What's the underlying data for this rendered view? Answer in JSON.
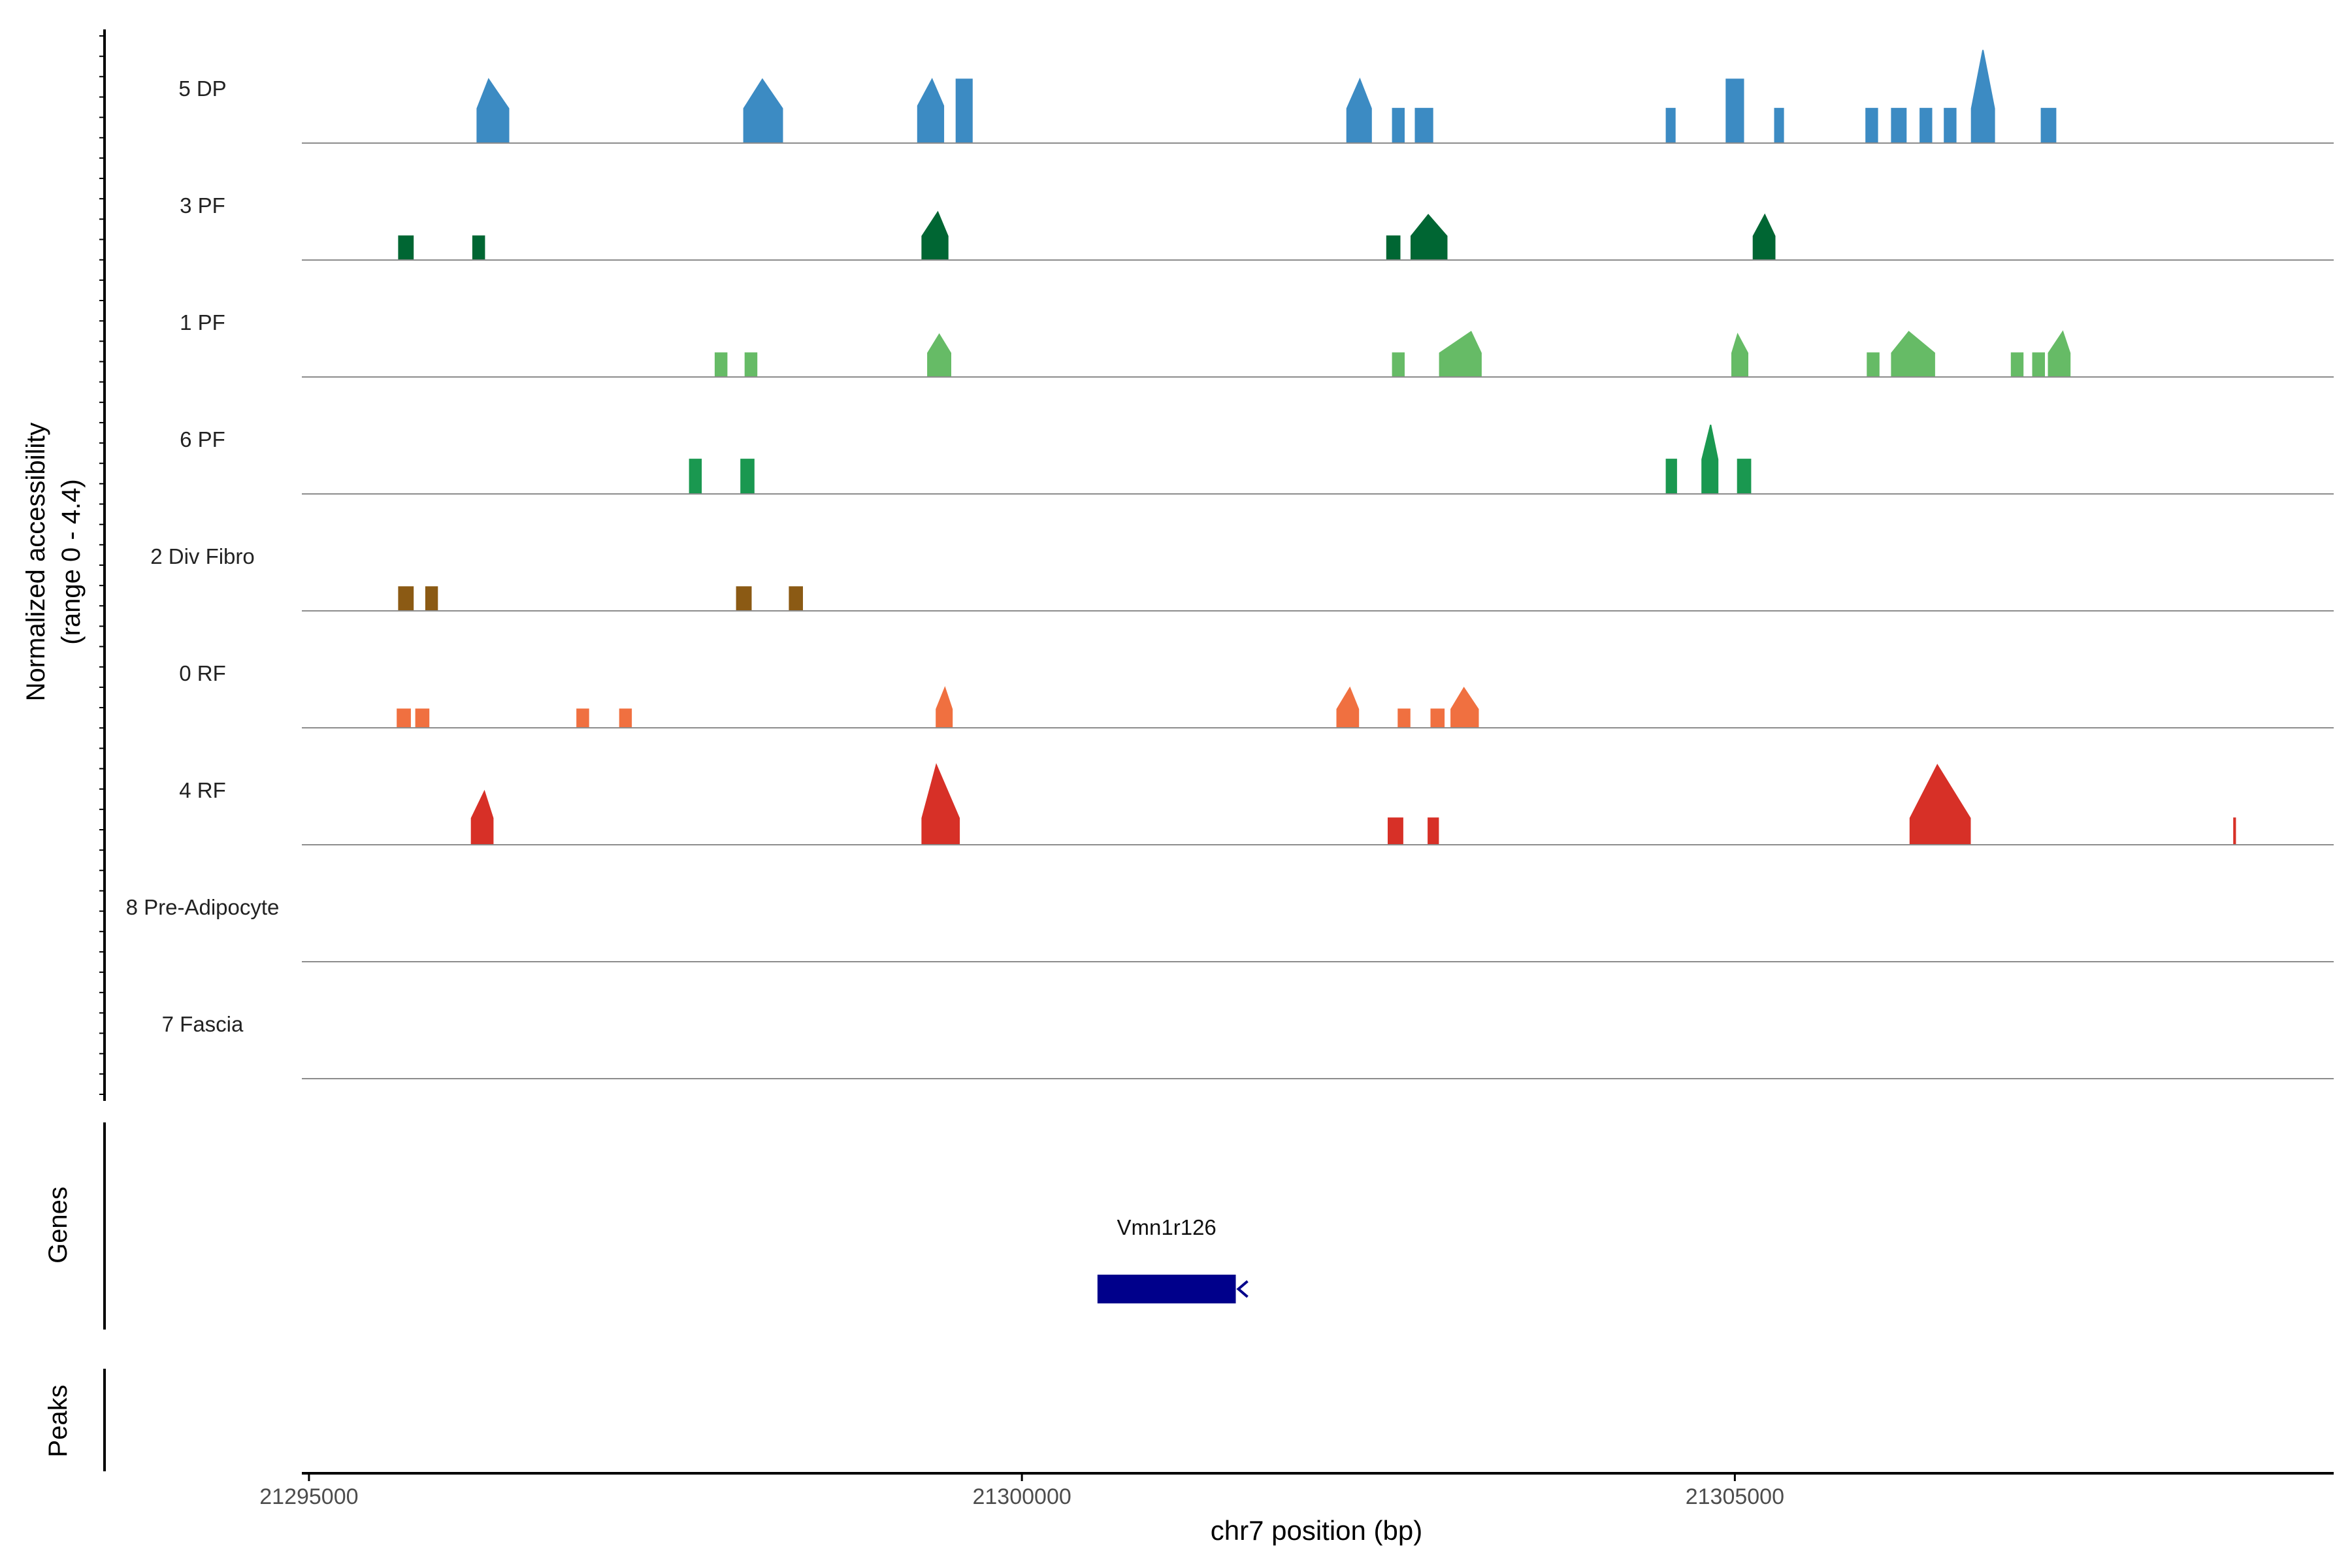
{
  "chart_data": {
    "type": "area",
    "title": "",
    "xlabel": "chr7 position (bp)",
    "ylabel_line1": "Normalized accessibility",
    "ylabel_line2": "(range 0 - 4.4)",
    "genes_label": "Genes",
    "peaks_label": "Peaks",
    "xlim": [
      21294950,
      21309200
    ],
    "ylim": [
      0,
      4.4
    ],
    "xticks": [
      21295000,
      21300000,
      21305000
    ],
    "xtick_labels": [
      "21295000",
      "21300000",
      "21305000"
    ],
    "tracks": [
      {
        "name": "5 DP",
        "color": "#3c8bc3",
        "peaks": [
          {
            "x": [
              21296180,
              21296260,
              21296400
            ],
            "y": [
              1.3,
              2.4,
              1.3
            ]
          },
          {
            "x": [
              21298050,
              21298180,
              21298320
            ],
            "y": [
              1.3,
              2.4,
              1.3
            ]
          },
          {
            "x": [
              21299270,
              21299370,
              21299450
            ],
            "y": [
              1.4,
              2.4,
              1.4
            ]
          },
          {
            "x": [
              21299540,
              21299650,
              21299650
            ],
            "y": [
              2.4,
              2.4,
              2.4
            ]
          },
          {
            "x": [
              21302280,
              21302370,
              21302450
            ],
            "y": [
              1.3,
              2.4,
              1.3
            ]
          },
          {
            "x": [
              21302600,
              21302680
            ],
            "y": [
              1.3,
              1.3
            ]
          },
          {
            "x": [
              21302760,
              21302880
            ],
            "y": [
              1.3,
              1.3
            ]
          },
          {
            "x": [
              21304520,
              21304580
            ],
            "y": [
              1.3,
              1.3
            ]
          },
          {
            "x": [
              21304940,
              21305000,
              21305060
            ],
            "y": [
              2.4,
              2.4,
              2.4
            ]
          },
          {
            "x": [
              21305280,
              21305340
            ],
            "y": [
              1.3,
              1.3
            ]
          },
          {
            "x": [
              21305920,
              21306000
            ],
            "y": [
              1.3,
              1.3
            ]
          },
          {
            "x": [
              21306100,
              21306200
            ],
            "y": [
              1.3,
              1.3
            ]
          },
          {
            "x": [
              21306300,
              21306380
            ],
            "y": [
              1.3,
              1.3
            ]
          },
          {
            "x": [
              21306470,
              21306550
            ],
            "y": [
              1.3,
              1.3
            ]
          },
          {
            "x": [
              21306660,
              21306740,
              21306820
            ],
            "y": [
              1.3,
              3.5,
              1.3
            ]
          },
          {
            "x": [
              21307150,
              21307250
            ],
            "y": [
              1.3,
              1.3
            ]
          }
        ]
      },
      {
        "name": "3 PF",
        "color": "#006633",
        "peaks": [
          {
            "x": [
              21295630,
              21295730
            ],
            "y": [
              0.9,
              0.9
            ]
          },
          {
            "x": [
              21296150,
              21296230
            ],
            "y": [
              0.9,
              0.9
            ]
          },
          {
            "x": [
              21299300,
              21299410,
              21299480
            ],
            "y": [
              0.9,
              1.8,
              0.9
            ]
          },
          {
            "x": [
              21302560,
              21302650
            ],
            "y": [
              0.9,
              0.9
            ]
          },
          {
            "x": [
              21302730,
              21302850,
              21302980
            ],
            "y": [
              0.9,
              1.7,
              0.9
            ]
          },
          {
            "x": [
              21305130,
              21305210,
              21305280
            ],
            "y": [
              0.9,
              1.7,
              0.9
            ]
          }
        ]
      },
      {
        "name": "1 PF",
        "color": "#66bb66",
        "peaks": [
          {
            "x": [
              21297850,
              21297930
            ],
            "y": [
              0.9,
              0.9
            ]
          },
          {
            "x": [
              21298060,
              21298140
            ],
            "y": [
              0.9,
              0.9
            ]
          },
          {
            "x": [
              21299340,
              21299420,
              21299500
            ],
            "y": [
              0.9,
              1.6,
              0.9
            ]
          },
          {
            "x": [
              21302600,
              21302680
            ],
            "y": [
              0.9,
              0.9
            ]
          },
          {
            "x": [
              21302930,
              21303150,
              21303220
            ],
            "y": [
              0.9,
              1.7,
              0.9
            ]
          },
          {
            "x": [
              21304980,
              21305020,
              21305090
            ],
            "y": [
              0.9,
              1.6,
              0.9
            ]
          },
          {
            "x": [
              21305930,
              21306010
            ],
            "y": [
              0.9,
              0.9
            ]
          },
          {
            "x": [
              21306100,
              21306220,
              21306400
            ],
            "y": [
              0.9,
              1.7,
              0.9
            ]
          },
          {
            "x": [
              21306940,
              21307020
            ],
            "y": [
              0.9,
              0.9
            ]
          },
          {
            "x": [
              21307090,
              21307170
            ],
            "y": [
              0.9,
              0.9
            ]
          },
          {
            "x": [
              21307200,
              21307300,
              21307350
            ],
            "y": [
              0.9,
              1.7,
              0.9
            ]
          }
        ]
      },
      {
        "name": "6 PF",
        "color": "#1a9850",
        "peaks": [
          {
            "x": [
              21297670,
              21297750
            ],
            "y": [
              1.3,
              1.3
            ]
          },
          {
            "x": [
              21298030,
              21298120
            ],
            "y": [
              1.3,
              1.3
            ]
          },
          {
            "x": [
              21304520,
              21304590
            ],
            "y": [
              1.3,
              1.3
            ]
          },
          {
            "x": [
              21304770,
              21304830,
              21304880
            ],
            "y": [
              1.3,
              2.6,
              1.3
            ]
          },
          {
            "x": [
              21305020,
              21305110
            ],
            "y": [
              1.3,
              1.3
            ]
          }
        ]
      },
      {
        "name": "2 Div Fibro",
        "color": "#8b5a14",
        "peaks": [
          {
            "x": [
              21295630,
              21295730
            ],
            "y": [
              0.9,
              0.9
            ]
          },
          {
            "x": [
              21295820,
              21295900
            ],
            "y": [
              0.9,
              0.9
            ]
          },
          {
            "x": [
              21298000,
              21298100
            ],
            "y": [
              0.9,
              0.9
            ]
          },
          {
            "x": [
              21298370,
              21298460
            ],
            "y": [
              0.9,
              0.9
            ]
          }
        ]
      },
      {
        "name": "0 RF",
        "color": "#f07040",
        "peaks": [
          {
            "x": [
              21295620,
              21295710
            ],
            "y": [
              0.7,
              0.7
            ]
          },
          {
            "x": [
              21295750,
              21295840
            ],
            "y": [
              0.7,
              0.7
            ]
          },
          {
            "x": [
              21296880,
              21296960
            ],
            "y": [
              0.7,
              0.7
            ]
          },
          {
            "x": [
              21297180,
              21297260
            ],
            "y": [
              0.7,
              0.7
            ]
          },
          {
            "x": [
              21299400,
              21299460,
              21299510
            ],
            "y": [
              0.7,
              1.5,
              0.7
            ]
          },
          {
            "x": [
              21302210,
              21302300,
              21302360
            ],
            "y": [
              0.7,
              1.5,
              0.7
            ]
          },
          {
            "x": [
              21302640,
              21302720
            ],
            "y": [
              0.7,
              0.7
            ]
          },
          {
            "x": [
              21302870,
              21302960
            ],
            "y": [
              0.7,
              0.7
            ]
          },
          {
            "x": [
              21303010,
              21303100,
              21303200
            ],
            "y": [
              0.7,
              1.5,
              0.7
            ]
          }
        ]
      },
      {
        "name": "4 RF",
        "color": "#d73027",
        "peaks": [
          {
            "x": [
              21296140,
              21296230,
              21296290
            ],
            "y": [
              1.0,
              2.0,
              1.0
            ]
          },
          {
            "x": [
              21299300,
              21299400,
              21299560
            ],
            "y": [
              1.0,
              3.0,
              1.0
            ]
          },
          {
            "x": [
              21302570,
              21302670
            ],
            "y": [
              1.0,
              1.0
            ]
          },
          {
            "x": [
              21302850,
              21302920
            ],
            "y": [
              1.0,
              1.0
            ]
          },
          {
            "x": [
              21306230,
              21306420,
              21306650
            ],
            "y": [
              1.0,
              3.0,
              1.0
            ]
          },
          {
            "x": [
              21308500,
              21308505,
              21308510
            ],
            "y": [
              1.0,
              1.0,
              1.0
            ]
          }
        ]
      },
      {
        "name": "8 Pre-Adipocyte",
        "color": "#888888",
        "peaks": []
      },
      {
        "name": "7 Fascia",
        "color": "#888888",
        "peaks": []
      }
    ],
    "genes": [
      {
        "name": "Vmn1r126",
        "start": 21300530,
        "end": 21301500,
        "strand": "-",
        "color": "#00008b"
      }
    ]
  }
}
